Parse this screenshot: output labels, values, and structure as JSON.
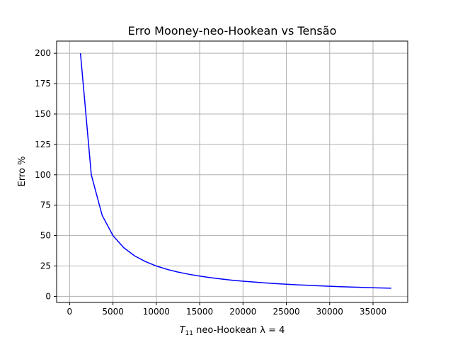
{
  "chart_data": {
    "type": "line",
    "title": "Erro Mooney-neo-Hookean vs Tensão",
    "xlabel": {
      "symbol": "T",
      "subscript": "11",
      "text": " neo-Hookean     λ = 4"
    },
    "ylabel": "Erro %",
    "xlim": [
      -1500,
      39000
    ],
    "ylim": [
      -5,
      210
    ],
    "xticks": [
      0,
      5000,
      10000,
      15000,
      20000,
      25000,
      30000,
      35000
    ],
    "yticks": [
      0,
      25,
      50,
      75,
      100,
      125,
      150,
      175,
      200
    ],
    "grid": true,
    "series": [
      {
        "color": "#0000ff",
        "x": [
          1250,
          2500,
          3750,
          5000,
          6250,
          7500,
          8750,
          10000,
          11250,
          12500,
          13750,
          15000,
          16250,
          17500,
          18750,
          20000,
          21250,
          22500,
          23750,
          25000,
          26250,
          27500,
          28750,
          30000,
          31250,
          32500,
          33750,
          35000,
          36250,
          37100
        ],
        "y": [
          200,
          100,
          66.7,
          50,
          40,
          33.3,
          28.6,
          25,
          22.2,
          20,
          18.2,
          16.7,
          15.4,
          14.3,
          13.3,
          12.5,
          11.8,
          11.1,
          10.5,
          10,
          9.5,
          9.1,
          8.7,
          8.3,
          8.0,
          7.7,
          7.4,
          7.1,
          6.9,
          6.7
        ]
      }
    ]
  }
}
